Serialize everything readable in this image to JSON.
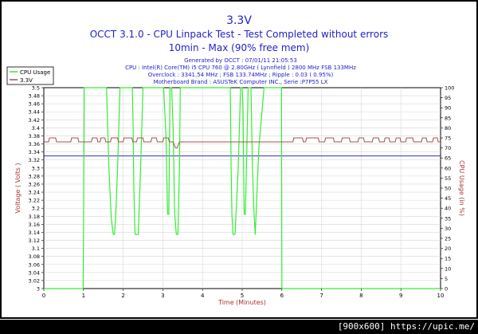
{
  "chart_data": {
    "type": "line",
    "title": "3.3V",
    "subtitle": "OCCT 3.1.0 - CPU Linpack Test - Test Completed without errors",
    "subtitle2": "10min - Max (90% free mem)",
    "info": [
      "Generated by OCCT : 07/01/11 21:05:53",
      "CPU : Intel(R) Core(TM) i5 CPU 760 @ 2.80GHz ( Lynnfield ) 2800 MHz FSB 133MHz",
      "Overclock : 3341.54 MHz ; FSB 133.74MHz ; Ripple : 0.03 ( 0.95%)",
      "Motherboard Brand : ASUSTeK Computer INC., Serie :P7P55 LX"
    ],
    "xlabel": "Time (Minutes)",
    "ylabel_left": "Voltage ( Volts )",
    "ylabel_right": "CPU Usage (in %)",
    "xlim": [
      0,
      10
    ],
    "ylim_left": [
      3.0,
      3.5
    ],
    "ylim_right": [
      0,
      100
    ],
    "x_ticks": [
      "0",
      "1",
      "2",
      "3",
      "4",
      "5",
      "6",
      "7",
      "8",
      "9",
      "10"
    ],
    "y_ticks_left": [
      "3",
      "3.02",
      "3.04",
      "3.06",
      "3.08",
      "3.1",
      "3.12",
      "3.14",
      "3.16",
      "3.18",
      "3.2",
      "3.22",
      "3.24",
      "3.26",
      "3.28",
      "3.3",
      "3.32",
      "3.34",
      "3.36",
      "3.38",
      "3.4",
      "3.42",
      "3.44",
      "3.46",
      "3.48",
      "3.5"
    ],
    "y_ticks_right": [
      "0",
      "5",
      "10",
      "15",
      "20",
      "25",
      "30",
      "35",
      "40",
      "45",
      "50",
      "55",
      "60",
      "65",
      "70",
      "75",
      "80",
      "85",
      "90",
      "95",
      "100"
    ],
    "legend": [
      {
        "name": "CPU Usage",
        "color": "#33ee33"
      },
      {
        "name": "3.3V",
        "color": "#a05050"
      }
    ],
    "reference_line": {
      "value": 3.33,
      "color": "#3030c0"
    },
    "series": [
      {
        "name": "CPU Usage",
        "axis": "right",
        "color": "#33ee33",
        "x": [
          0,
          0.99,
          1.0,
          1.02,
          1.08,
          1.12,
          1.14,
          1.18,
          1.58,
          1.64,
          1.7,
          1.75,
          1.78,
          1.81,
          1.86,
          1.92,
          1.98,
          2.05,
          2.1,
          2.16,
          2.23,
          2.25,
          2.27,
          2.3,
          2.38,
          2.44,
          2.5,
          2.55,
          2.6,
          2.65,
          2.75,
          2.82,
          3.02,
          3.08,
          3.12,
          3.15,
          3.18,
          3.22,
          3.26,
          3.3,
          3.34,
          3.38,
          3.42,
          3.44,
          3.55,
          3.75,
          4.7,
          4.72,
          4.74,
          4.77,
          4.82,
          4.9,
          4.96,
          5.0,
          5.02,
          5.05,
          5.08,
          5.15,
          5.22,
          5.26,
          5.3,
          5.33,
          5.42,
          5.55,
          5.99,
          6.0,
          6.01,
          10.0
        ],
        "y": [
          0,
          0,
          25,
          100,
          100,
          100,
          100,
          100,
          100,
          60,
          35,
          27,
          27,
          35,
          60,
          100,
          100,
          100,
          100,
          100,
          100,
          80,
          50,
          27,
          27,
          60,
          100,
          100,
          100,
          100,
          100,
          100,
          100,
          75,
          37,
          37,
          100,
          100,
          80,
          37,
          27,
          27,
          60,
          100,
          100,
          100,
          100,
          60,
          37,
          27,
          27,
          60,
          100,
          100,
          90,
          37,
          37,
          100,
          100,
          60,
          37,
          27,
          70,
          100,
          100,
          0,
          0,
          0
        ]
      },
      {
        "name": "3.3V",
        "axis": "left",
        "color": "#a05050",
        "x": [
          0,
          0.12,
          0.14,
          0.3,
          0.32,
          0.68,
          0.7,
          0.86,
          0.88,
          1.0,
          1.2,
          1.22,
          1.34,
          1.36,
          1.42,
          1.44,
          1.54,
          1.56,
          1.68,
          1.7,
          1.86,
          1.88,
          2.0,
          2.02,
          2.22,
          2.24,
          2.34,
          2.36,
          2.5,
          2.52,
          2.7,
          2.72,
          2.84,
          2.86,
          3.0,
          3.02,
          3.14,
          3.16,
          3.26,
          3.32,
          3.36,
          3.42,
          3.5,
          3.8,
          4.2,
          4.6,
          5.0,
          5.4,
          5.8,
          6.2,
          6.28,
          6.3,
          6.52,
          6.54,
          6.6,
          6.62,
          6.92,
          6.94,
          7.08,
          7.1,
          7.3,
          7.32,
          7.5,
          7.52,
          7.7,
          7.72,
          7.92,
          7.94,
          8.06,
          8.08,
          8.28,
          8.3,
          8.44,
          8.46,
          8.58,
          8.6,
          8.7,
          8.72,
          8.86,
          8.88,
          8.98,
          9.0,
          9.12,
          9.14,
          9.3,
          9.32,
          9.52,
          9.54,
          9.64,
          9.66,
          9.8,
          9.82,
          9.92,
          9.94,
          10.0
        ],
        "y": [
          3.365,
          3.365,
          3.375,
          3.375,
          3.365,
          3.365,
          3.375,
          3.375,
          3.365,
          3.365,
          3.365,
          3.375,
          3.375,
          3.365,
          3.365,
          3.375,
          3.375,
          3.365,
          3.365,
          3.375,
          3.375,
          3.365,
          3.365,
          3.375,
          3.375,
          3.365,
          3.365,
          3.375,
          3.375,
          3.365,
          3.365,
          3.375,
          3.375,
          3.365,
          3.365,
          3.375,
          3.375,
          3.365,
          3.365,
          3.35,
          3.35,
          3.365,
          3.365,
          3.365,
          3.365,
          3.365,
          3.365,
          3.365,
          3.365,
          3.365,
          3.365,
          3.375,
          3.375,
          3.365,
          3.365,
          3.375,
          3.375,
          3.365,
          3.365,
          3.375,
          3.375,
          3.365,
          3.365,
          3.375,
          3.375,
          3.365,
          3.365,
          3.375,
          3.375,
          3.365,
          3.365,
          3.375,
          3.375,
          3.365,
          3.365,
          3.375,
          3.375,
          3.365,
          3.365,
          3.375,
          3.375,
          3.365,
          3.365,
          3.375,
          3.375,
          3.365,
          3.365,
          3.375,
          3.375,
          3.365,
          3.365,
          3.375,
          3.375,
          3.365,
          3.365
        ]
      }
    ]
  },
  "watermark": "[900x600] https://upic.me/"
}
